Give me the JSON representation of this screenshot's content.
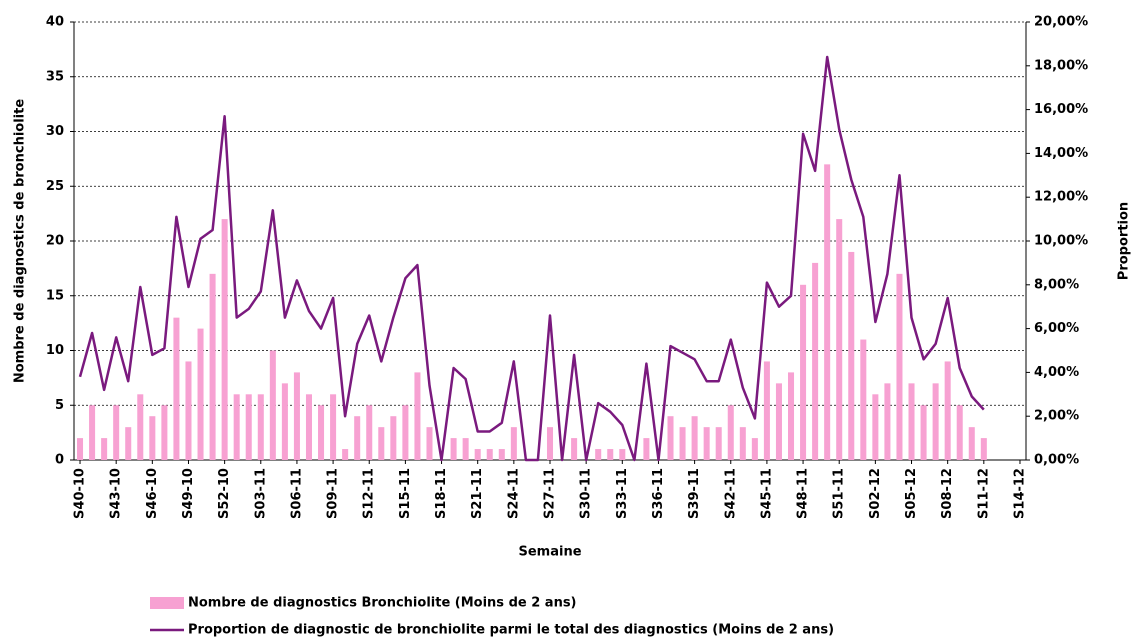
{
  "chart_data": {
    "type": "bar_line",
    "ylabel": "Nombre de diagnostics de bronchiolite",
    "y2label": "Proportion",
    "xlabel": "Semaine",
    "categories": [
      "S40-10",
      null,
      null,
      "S43-10",
      null,
      null,
      "S46-10",
      null,
      null,
      "S49-10",
      null,
      null,
      "S52-10",
      null,
      null,
      "S03-11",
      null,
      null,
      "S06-11",
      null,
      null,
      "S09-11",
      null,
      null,
      "S12-11",
      null,
      null,
      "S15-11",
      null,
      null,
      "S18-11",
      null,
      null,
      "S21-11",
      null,
      null,
      "S24-11",
      null,
      null,
      "S27-11",
      null,
      null,
      "S30-11",
      null,
      null,
      "S33-11",
      null,
      null,
      "S36-11",
      null,
      null,
      "S39-11",
      null,
      null,
      "S42-11",
      null,
      null,
      "S45-11",
      null,
      null,
      "S48-11",
      null,
      null,
      "S51-11",
      null,
      null,
      "S02-12",
      null,
      null,
      "S05-12",
      null,
      null,
      "S08-12",
      null,
      null,
      "S11-12",
      null,
      null,
      "S14-12"
    ],
    "series": [
      {
        "name": "Nombre de diagnostics Bronchiolite (Moins de 2 ans)",
        "type": "bar",
        "color": "#f7a1d2",
        "values": [
          2,
          5,
          2,
          5,
          3,
          6,
          4,
          5,
          13,
          9,
          12,
          17,
          22,
          6,
          6,
          6,
          10,
          7,
          8,
          6,
          5,
          6,
          1,
          4,
          5,
          3,
          4,
          5,
          8,
          3,
          0,
          2,
          2,
          1,
          1,
          1,
          3,
          0,
          0,
          3,
          0,
          2,
          0,
          1,
          1,
          1,
          0,
          2,
          0,
          4,
          3,
          4,
          3,
          3,
          5,
          3,
          2,
          9,
          7,
          8,
          16,
          18,
          27,
          22,
          19,
          11,
          6,
          7,
          17,
          7,
          5,
          7,
          9,
          5,
          3,
          2,
          null,
          null,
          null
        ]
      },
      {
        "name": "Proportion de diagnostic de bronchiolite parmi le total des diagnostics (Moins de 2 ans)",
        "type": "line",
        "axis": "y2",
        "color": "#7a1a7e",
        "values": [
          3.8,
          5.8,
          3.2,
          5.6,
          3.6,
          7.9,
          4.8,
          5.1,
          11.1,
          7.9,
          10.1,
          10.5,
          15.7,
          6.5,
          6.9,
          7.7,
          11.4,
          6.5,
          8.2,
          6.8,
          6.0,
          7.4,
          2.0,
          5.3,
          6.6,
          4.5,
          6.5,
          8.3,
          8.9,
          3.4,
          0,
          4.2,
          3.7,
          1.3,
          1.3,
          1.7,
          4.5,
          0,
          0,
          6.6,
          0,
          4.8,
          0,
          2.6,
          2.2,
          1.6,
          0,
          4.4,
          0,
          5.2,
          4.9,
          4.6,
          3.6,
          3.6,
          5.5,
          3.3,
          1.9,
          8.1,
          7.0,
          7.5,
          14.9,
          13.2,
          18.4,
          15.1,
          12.8,
          11.1,
          6.3,
          8.5,
          13.0,
          6.5,
          4.6,
          5.3,
          7.4,
          4.2,
          2.9,
          2.3,
          null,
          null,
          null
        ]
      }
    ],
    "ylim": [
      0,
      40
    ],
    "yticks": [
      0,
      5,
      10,
      15,
      20,
      25,
      30,
      35,
      40
    ],
    "y2lim": [
      0,
      20
    ],
    "y2ticks": [
      {
        "value": 0,
        "label": "0,00%"
      },
      {
        "value": 2,
        "label": "2,00%"
      },
      {
        "value": 4,
        "label": "4,00%"
      },
      {
        "value": 6,
        "label": "6,00%"
      },
      {
        "value": 8,
        "label": "8,00%"
      },
      {
        "value": 10,
        "label": "10,00%"
      },
      {
        "value": 12,
        "label": "12,00%"
      },
      {
        "value": 14,
        "label": "14,00%"
      },
      {
        "value": 16,
        "label": "16,00%"
      },
      {
        "value": 18,
        "label": "18,00%"
      },
      {
        "value": 20,
        "label": "20,00%"
      }
    ],
    "grid": true,
    "legend": "bottom"
  }
}
